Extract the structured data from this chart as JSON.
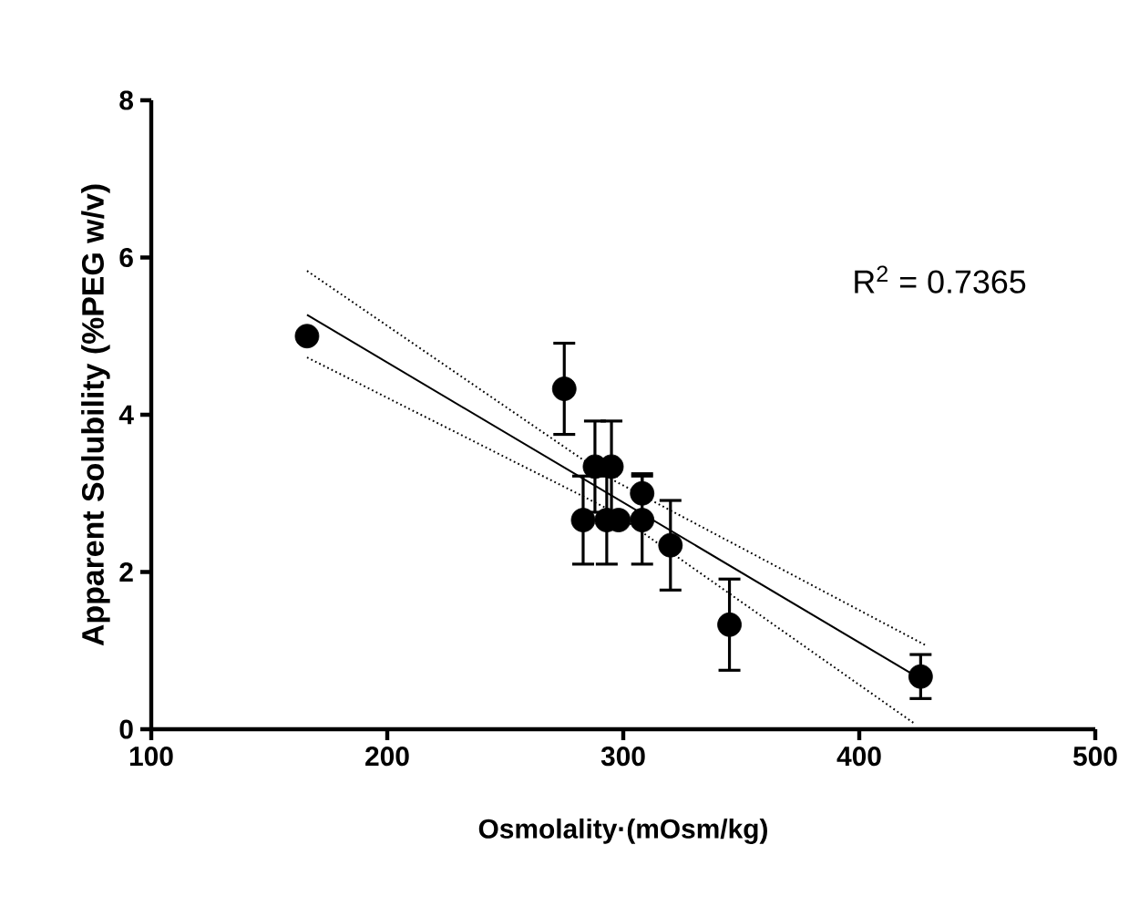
{
  "chart_data": {
    "type": "scatter",
    "xlabel": "Osmolality·(mOsm/kg)",
    "ylabel": "Apparent Solubility (%PEG w/v)",
    "xlim": [
      100,
      500
    ],
    "xticks": [
      100,
      200,
      300,
      400,
      500
    ],
    "ylim": [
      0,
      8
    ],
    "yticks": [
      0,
      2,
      4,
      6,
      8
    ],
    "grid": false,
    "annotations": [
      "R$^{2}$ = 0.7365"
    ],
    "series": [
      {
        "type": "scatter",
        "color": "#000000",
        "marker": "circle",
        "x": [
          166,
          275,
          288,
          295,
          283,
          293,
          298,
          308,
          308,
          320,
          345,
          426
        ],
        "values": [
          5.0,
          4.33,
          3.34,
          3.34,
          2.66,
          2.66,
          2.66,
          2.66,
          3.0,
          2.34,
          1.33,
          0.67
        ],
        "errors": [
          null,
          0.58,
          0.58,
          0.58,
          0.56,
          0.56,
          null,
          0.56,
          [
            3.0,
            3.25
          ],
          0.57,
          0.58,
          0.28
        ]
      },
      {
        "type": "line",
        "color": "#000000",
        "marker": "none",
        "line_style": "solid",
        "x": [
          166,
          426
        ],
        "values": [
          5.27,
          0.64
        ]
      },
      {
        "type": "line",
        "color": "#000000",
        "marker": "none",
        "line_style": "dotted",
        "x": [
          166,
          295,
          428
        ],
        "values": [
          5.83,
          3.18,
          1.07
        ]
      },
      {
        "type": "line",
        "color": "#000000",
        "marker": "none",
        "line_style": "dotted",
        "x": [
          166,
          295,
          423
        ],
        "values": [
          4.73,
          2.78,
          0.08
        ]
      }
    ]
  }
}
